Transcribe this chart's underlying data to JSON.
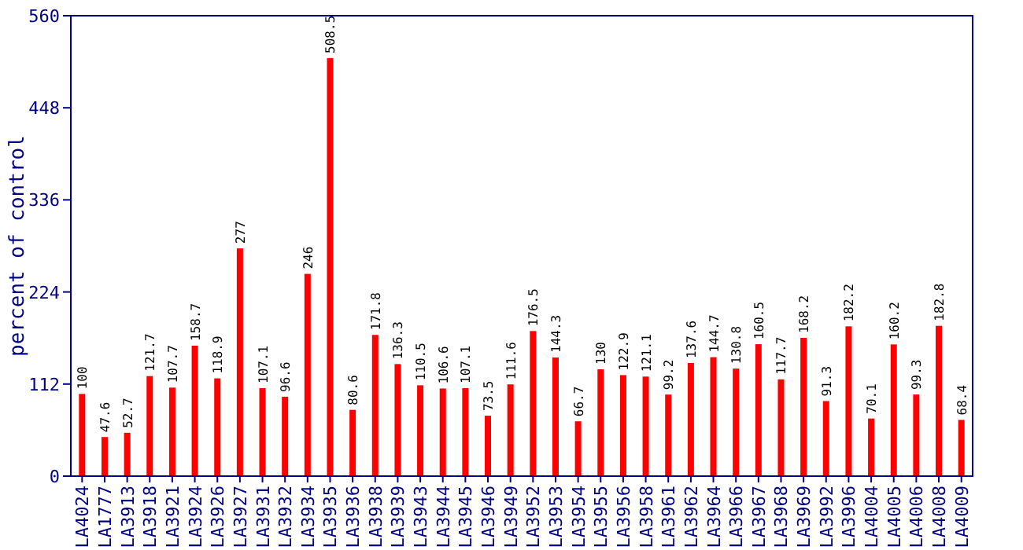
{
  "chart_data": {
    "type": "bar",
    "ylabel": "percent of control",
    "categories": [
      "LA4024",
      "LA1777",
      "LA3913",
      "LA3918",
      "LA3921",
      "LA3924",
      "LA3926",
      "LA3927",
      "LA3931",
      "LA3932",
      "LA3934",
      "LA3935",
      "LA3936",
      "LA3938",
      "LA3939",
      "LA3943",
      "LA3944",
      "LA3945",
      "LA3946",
      "LA3949",
      "LA3952",
      "LA3953",
      "LA3954",
      "LA3955",
      "LA3956",
      "LA3958",
      "LA3961",
      "LA3962",
      "LA3964",
      "LA3966",
      "LA3967",
      "LA3968",
      "LA3969",
      "LA3992",
      "LA3996",
      "LA4004",
      "LA4005",
      "LA4006",
      "LA4008",
      "LA4009"
    ],
    "values": [
      100,
      47.6,
      52.7,
      121.7,
      107.7,
      158.7,
      118.9,
      277,
      107.1,
      96.6,
      246,
      508.5,
      80.6,
      171.8,
      136.3,
      110.5,
      106.6,
      107.1,
      73.5,
      111.6,
      176.5,
      144.3,
      66.7,
      130,
      122.9,
      121.1,
      99.2,
      137.6,
      144.7,
      130.8,
      160.5,
      117.7,
      168.2,
      91.3,
      182.2,
      70.1,
      160.2,
      99.3,
      182.8,
      68.4
    ],
    "color": "#ff0000",
    "ylim": [
      0,
      560
    ],
    "yticks": [
      0,
      112,
      224,
      336,
      448,
      560
    ],
    "data_labels": true
  }
}
